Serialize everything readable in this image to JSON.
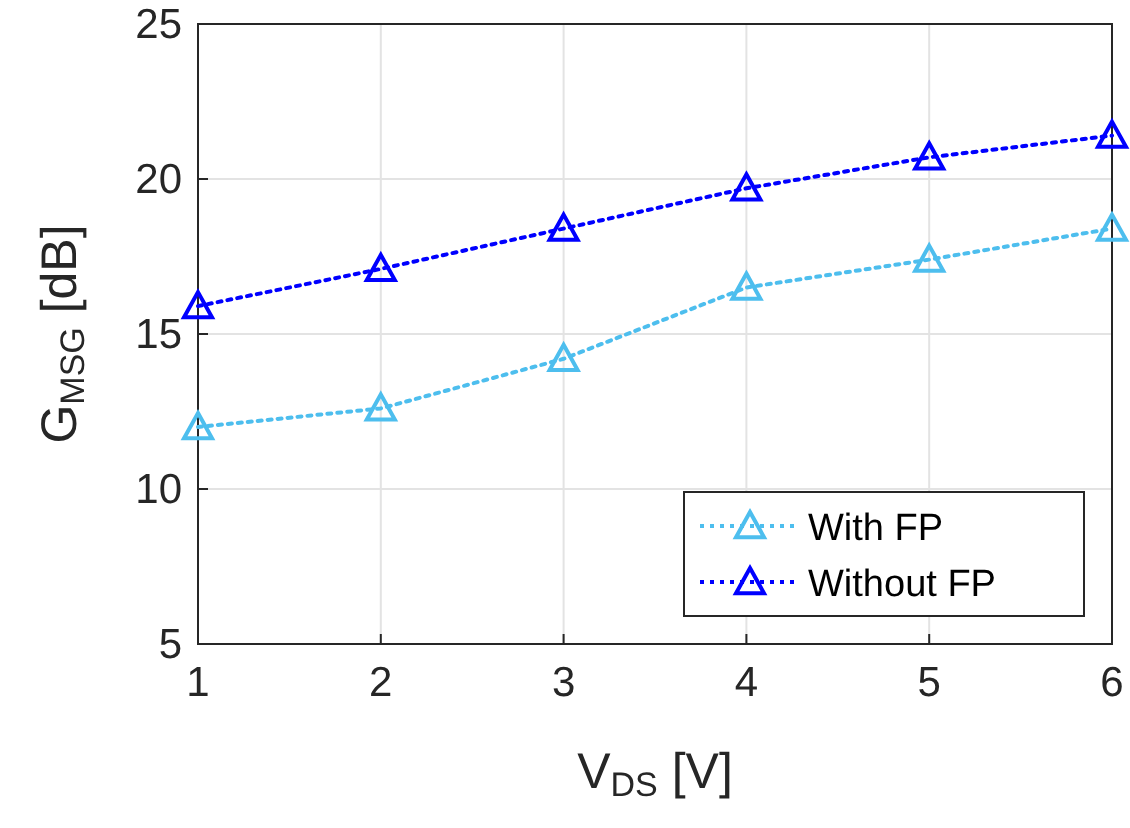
{
  "chart_data": {
    "type": "line",
    "xlabel": "V$_{DS}$ [V]",
    "ylabel": "G$_{MSG}$ [dB]",
    "x": [
      1,
      2,
      3,
      4,
      5,
      6
    ],
    "series": [
      {
        "name": "With FP",
        "color": "#4dbeee",
        "values": [
          12.0,
          12.6,
          14.2,
          16.5,
          17.4,
          18.4
        ]
      },
      {
        "name": "Without FP",
        "color": "#0000ff",
        "values": [
          15.9,
          17.1,
          18.4,
          19.7,
          20.7,
          21.4
        ]
      }
    ],
    "xlim": [
      1,
      6
    ],
    "xticks": [
      1,
      2,
      3,
      4,
      5,
      6
    ],
    "ylim": [
      5,
      25
    ],
    "yticks": [
      5,
      10,
      15,
      20,
      25
    ],
    "grid": true,
    "legend": "bottom right",
    "marker": "triangle",
    "line_style": "dotted"
  }
}
